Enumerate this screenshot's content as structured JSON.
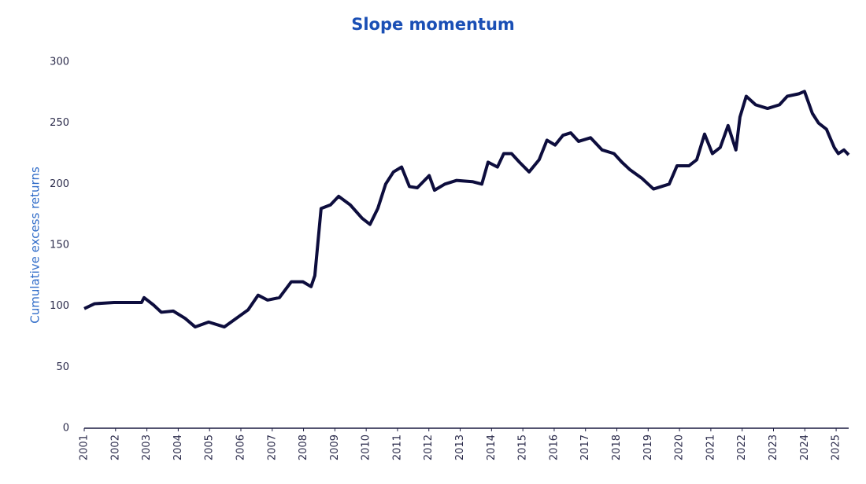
{
  "chart_data": {
    "type": "line",
    "title": "Slope momentum",
    "y_label": "Cumulative excess returns",
    "x": [
      2001.0,
      2001.33,
      2001.95,
      2002.83,
      2002.91,
      2003.21,
      2003.46,
      2003.84,
      2004.22,
      2004.54,
      2004.97,
      2005.47,
      2005.85,
      2006.23,
      2006.55,
      2006.85,
      2007.23,
      2007.61,
      2007.98,
      2008.24,
      2008.36,
      2008.56,
      2008.86,
      2009.12,
      2009.49,
      2009.87,
      2010.12,
      2010.37,
      2010.62,
      2010.87,
      2011.13,
      2011.38,
      2011.63,
      2012.01,
      2012.18,
      2012.51,
      2012.88,
      2013.39,
      2013.69,
      2013.89,
      2014.19,
      2014.39,
      2014.64,
      2014.89,
      2015.2,
      2015.52,
      2015.77,
      2016.03,
      2016.28,
      2016.53,
      2016.78,
      2017.16,
      2017.53,
      2017.91,
      2018.16,
      2018.41,
      2018.79,
      2019.17,
      2019.67,
      2019.92,
      2020.3,
      2020.55,
      2020.8,
      2021.05,
      2021.3,
      2021.55,
      2021.8,
      2021.93,
      2022.13,
      2022.43,
      2022.81,
      2023.19,
      2023.44,
      2023.81,
      2023.99,
      2024.24,
      2024.44,
      2024.69,
      2024.94,
      2025.07,
      2025.25,
      2025.4
    ],
    "series": [
      {
        "name": "Slope momentum",
        "color": "#0d0d3d",
        "values": [
          98,
          102,
          103,
          103,
          107,
          101,
          95,
          96,
          90,
          83,
          87,
          83,
          90,
          97,
          109,
          105,
          107,
          120,
          120,
          116,
          125,
          180,
          183,
          190,
          183,
          172,
          167,
          180,
          200,
          210,
          214,
          198,
          197,
          207,
          195,
          200,
          203,
          202,
          200,
          218,
          214,
          225,
          225,
          218,
          210,
          220,
          236,
          232,
          240,
          242,
          235,
          238,
          228,
          225,
          218,
          212,
          205,
          196,
          200,
          215,
          215,
          220,
          241,
          225,
          230,
          248,
          228,
          255,
          272,
          265,
          262,
          265,
          272,
          274,
          276,
          258,
          250,
          245,
          230,
          225,
          228,
          224
        ]
      }
    ],
    "xlim": [
      2001,
      2025.4
    ],
    "xticks": [
      2001,
      2002,
      2003,
      2004,
      2005,
      2006,
      2007,
      2008,
      2009,
      2010,
      2011,
      2012,
      2013,
      2014,
      2015,
      2016,
      2017,
      2018,
      2019,
      2020,
      2021,
      2022,
      2023,
      2024,
      2025
    ],
    "ylim": [
      0,
      300
    ],
    "yticks": [
      0,
      50,
      100,
      150,
      200,
      250,
      300
    ],
    "grid": false
  }
}
